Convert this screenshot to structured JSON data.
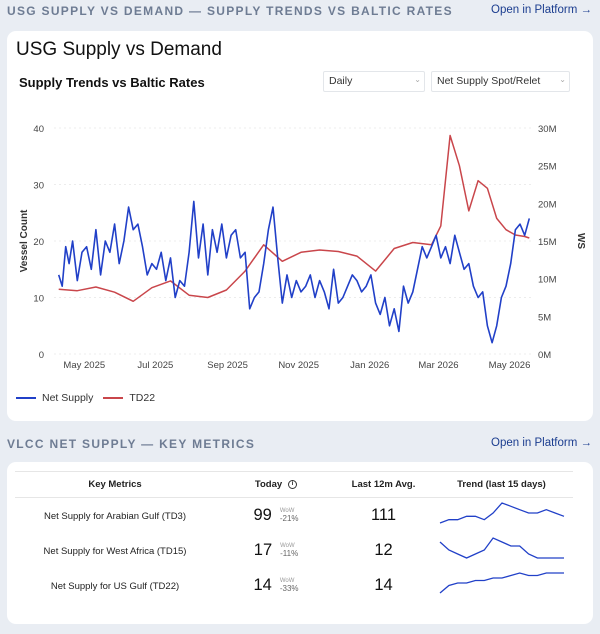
{
  "section1": {
    "title": "USG SUPPLY VS DEMAND — SUPPLY TRENDS VS BALTIC RATES",
    "open_link": "Open in Platform →"
  },
  "card1": {
    "title": "USG Supply vs Demand",
    "subtitle": "Supply Trends vs Baltic Rates",
    "freq_select": "Daily",
    "metric_select": "Net Supply Spot/Relet"
  },
  "chart_data": {
    "type": "line",
    "xlabel": "",
    "ylabel": "Vessel Count",
    "y2label": "WS",
    "x_tick_labels": [
      "May 2025",
      "Jul 2025",
      "Sep 2025",
      "Nov 2025",
      "Jan 2026",
      "Mar 2026",
      "May 2026"
    ],
    "y_ticks": [
      0,
      10,
      20,
      30,
      40
    ],
    "y2_tick_labels": [
      "0M",
      "5M",
      "10M",
      "15M",
      "20M",
      "25M",
      "30M"
    ],
    "ylim": [
      0,
      40
    ],
    "y2lim": [
      0,
      30000000
    ],
    "grid": true,
    "legend_position": "bottom-left",
    "series": [
      {
        "name": "Net Supply",
        "color": "#2140c8",
        "axis": "left",
        "x": [
          "2025-04-09",
          "2025-04-12",
          "2025-04-15",
          "2025-04-18",
          "2025-04-21",
          "2025-04-25",
          "2025-04-29",
          "2025-05-03",
          "2025-05-07",
          "2025-05-11",
          "2025-05-15",
          "2025-05-19",
          "2025-05-23",
          "2025-05-27",
          "2025-05-31",
          "2025-06-04",
          "2025-06-08",
          "2025-06-12",
          "2025-06-16",
          "2025-06-20",
          "2025-06-24",
          "2025-06-28",
          "2025-07-02",
          "2025-07-06",
          "2025-07-10",
          "2025-07-14",
          "2025-07-18",
          "2025-07-22",
          "2025-07-26",
          "2025-07-30",
          "2025-08-03",
          "2025-08-07",
          "2025-08-11",
          "2025-08-15",
          "2025-08-19",
          "2025-08-23",
          "2025-08-27",
          "2025-08-31",
          "2025-09-04",
          "2025-09-08",
          "2025-09-12",
          "2025-09-16",
          "2025-09-20",
          "2025-09-24",
          "2025-09-28",
          "2025-10-02",
          "2025-10-06",
          "2025-10-10",
          "2025-10-14",
          "2025-10-18",
          "2025-10-22",
          "2025-10-26",
          "2025-10-30",
          "2025-11-03",
          "2025-11-07",
          "2025-11-11",
          "2025-11-15",
          "2025-11-19",
          "2025-11-23",
          "2025-11-27",
          "2025-12-01",
          "2025-12-05",
          "2025-12-09",
          "2025-12-13",
          "2025-12-17",
          "2025-12-21",
          "2025-12-25",
          "2025-12-29",
          "2026-01-02",
          "2026-01-06",
          "2026-01-10",
          "2026-01-14",
          "2026-01-18",
          "2026-01-22",
          "2026-01-26",
          "2026-01-30",
          "2026-02-03",
          "2026-02-07",
          "2026-02-11",
          "2026-02-15",
          "2026-02-19",
          "2026-02-23",
          "2026-02-27",
          "2026-03-03",
          "2026-03-07",
          "2026-03-11",
          "2026-03-15",
          "2026-03-19",
          "2026-03-23",
          "2026-03-27",
          "2026-03-31",
          "2026-04-04",
          "2026-04-08",
          "2026-04-12",
          "2026-04-16",
          "2026-04-20",
          "2026-04-24",
          "2026-04-28",
          "2026-05-02",
          "2026-05-06",
          "2026-05-10",
          "2026-05-14",
          "2026-05-18"
        ],
        "values": [
          14,
          12,
          19,
          16,
          20,
          13,
          18,
          19,
          15,
          22,
          14,
          20,
          18,
          23,
          16,
          20,
          26,
          22,
          23,
          19,
          14,
          16,
          15,
          18,
          13,
          17,
          10,
          13,
          12,
          18,
          27,
          17,
          23,
          14,
          22,
          18,
          23,
          17,
          21,
          22,
          17,
          18,
          8,
          10,
          11,
          16,
          22,
          26,
          17,
          9,
          14,
          10,
          13,
          11,
          12,
          14,
          10,
          13,
          11,
          8,
          15,
          9,
          10,
          12,
          14,
          13,
          11,
          12,
          14,
          9,
          7,
          10,
          5,
          8,
          4,
          12,
          9,
          11,
          15,
          19,
          17,
          19,
          21,
          17,
          19,
          16,
          21,
          18,
          15,
          16,
          12,
          10,
          11,
          5,
          2,
          5,
          10,
          12,
          16,
          22,
          23,
          21,
          24
        ]
      },
      {
        "name": "TD22",
        "color": "#c9464b",
        "axis": "right",
        "x": [
          "2025-04-09",
          "2025-04-25",
          "2025-05-11",
          "2025-05-27",
          "2025-06-12",
          "2025-06-28",
          "2025-07-14",
          "2025-07-30",
          "2025-08-15",
          "2025-08-31",
          "2025-09-16",
          "2025-10-02",
          "2025-10-18",
          "2025-11-03",
          "2025-11-19",
          "2025-12-05",
          "2025-12-21",
          "2026-01-06",
          "2026-01-22",
          "2026-02-07",
          "2026-02-23",
          "2026-03-03",
          "2026-03-11",
          "2026-03-19",
          "2026-03-27",
          "2026-04-04",
          "2026-04-12",
          "2026-04-20",
          "2026-04-28",
          "2026-05-06",
          "2026-05-14",
          "2026-05-18"
        ],
        "values": [
          8600000,
          8400000,
          8900000,
          8200000,
          7000000,
          8800000,
          9700000,
          7800000,
          7500000,
          8500000,
          11000000,
          14500000,
          12300000,
          13500000,
          13800000,
          13600000,
          13000000,
          11000000,
          14000000,
          14800000,
          14500000,
          17000000,
          29000000,
          25000000,
          19000000,
          23000000,
          22000000,
          18000000,
          16500000,
          15800000,
          15600000,
          15400000
        ]
      }
    ]
  },
  "section2": {
    "title": "VLCC NET SUPPLY — KEY METRICS",
    "open_link": "Open in Platform →"
  },
  "metrics": {
    "headers": [
      "Key Metrics",
      "Today",
      "Last 12m Avg.",
      "Trend (last 15 days)"
    ],
    "wow_label": "WoW",
    "rows": [
      {
        "label": "Net Supply for Arabian Gulf (TD3)",
        "today": "99",
        "wow": "-21%",
        "avg": "111",
        "trend": [
          3,
          4,
          4,
          5,
          5,
          4,
          6,
          9,
          8,
          7,
          6,
          6,
          7,
          6,
          5
        ],
        "color": "#2140c8"
      },
      {
        "label": "Net Supply for West Africa (TD15)",
        "today": "17",
        "wow": "-11%",
        "avg": "12",
        "trend": [
          7,
          5,
          4,
          3,
          4,
          5,
          8,
          7,
          6,
          6,
          4,
          3,
          3,
          3,
          3
        ],
        "color": "#2140c8"
      },
      {
        "label": "Net Supply for US Gulf (TD22)",
        "today": "14",
        "wow": "-33%",
        "avg": "14",
        "trend": [
          1,
          4,
          5,
          5,
          6,
          6,
          7,
          7,
          8,
          9,
          8,
          8,
          9,
          9,
          9
        ],
        "color": "#2140c8"
      }
    ]
  }
}
